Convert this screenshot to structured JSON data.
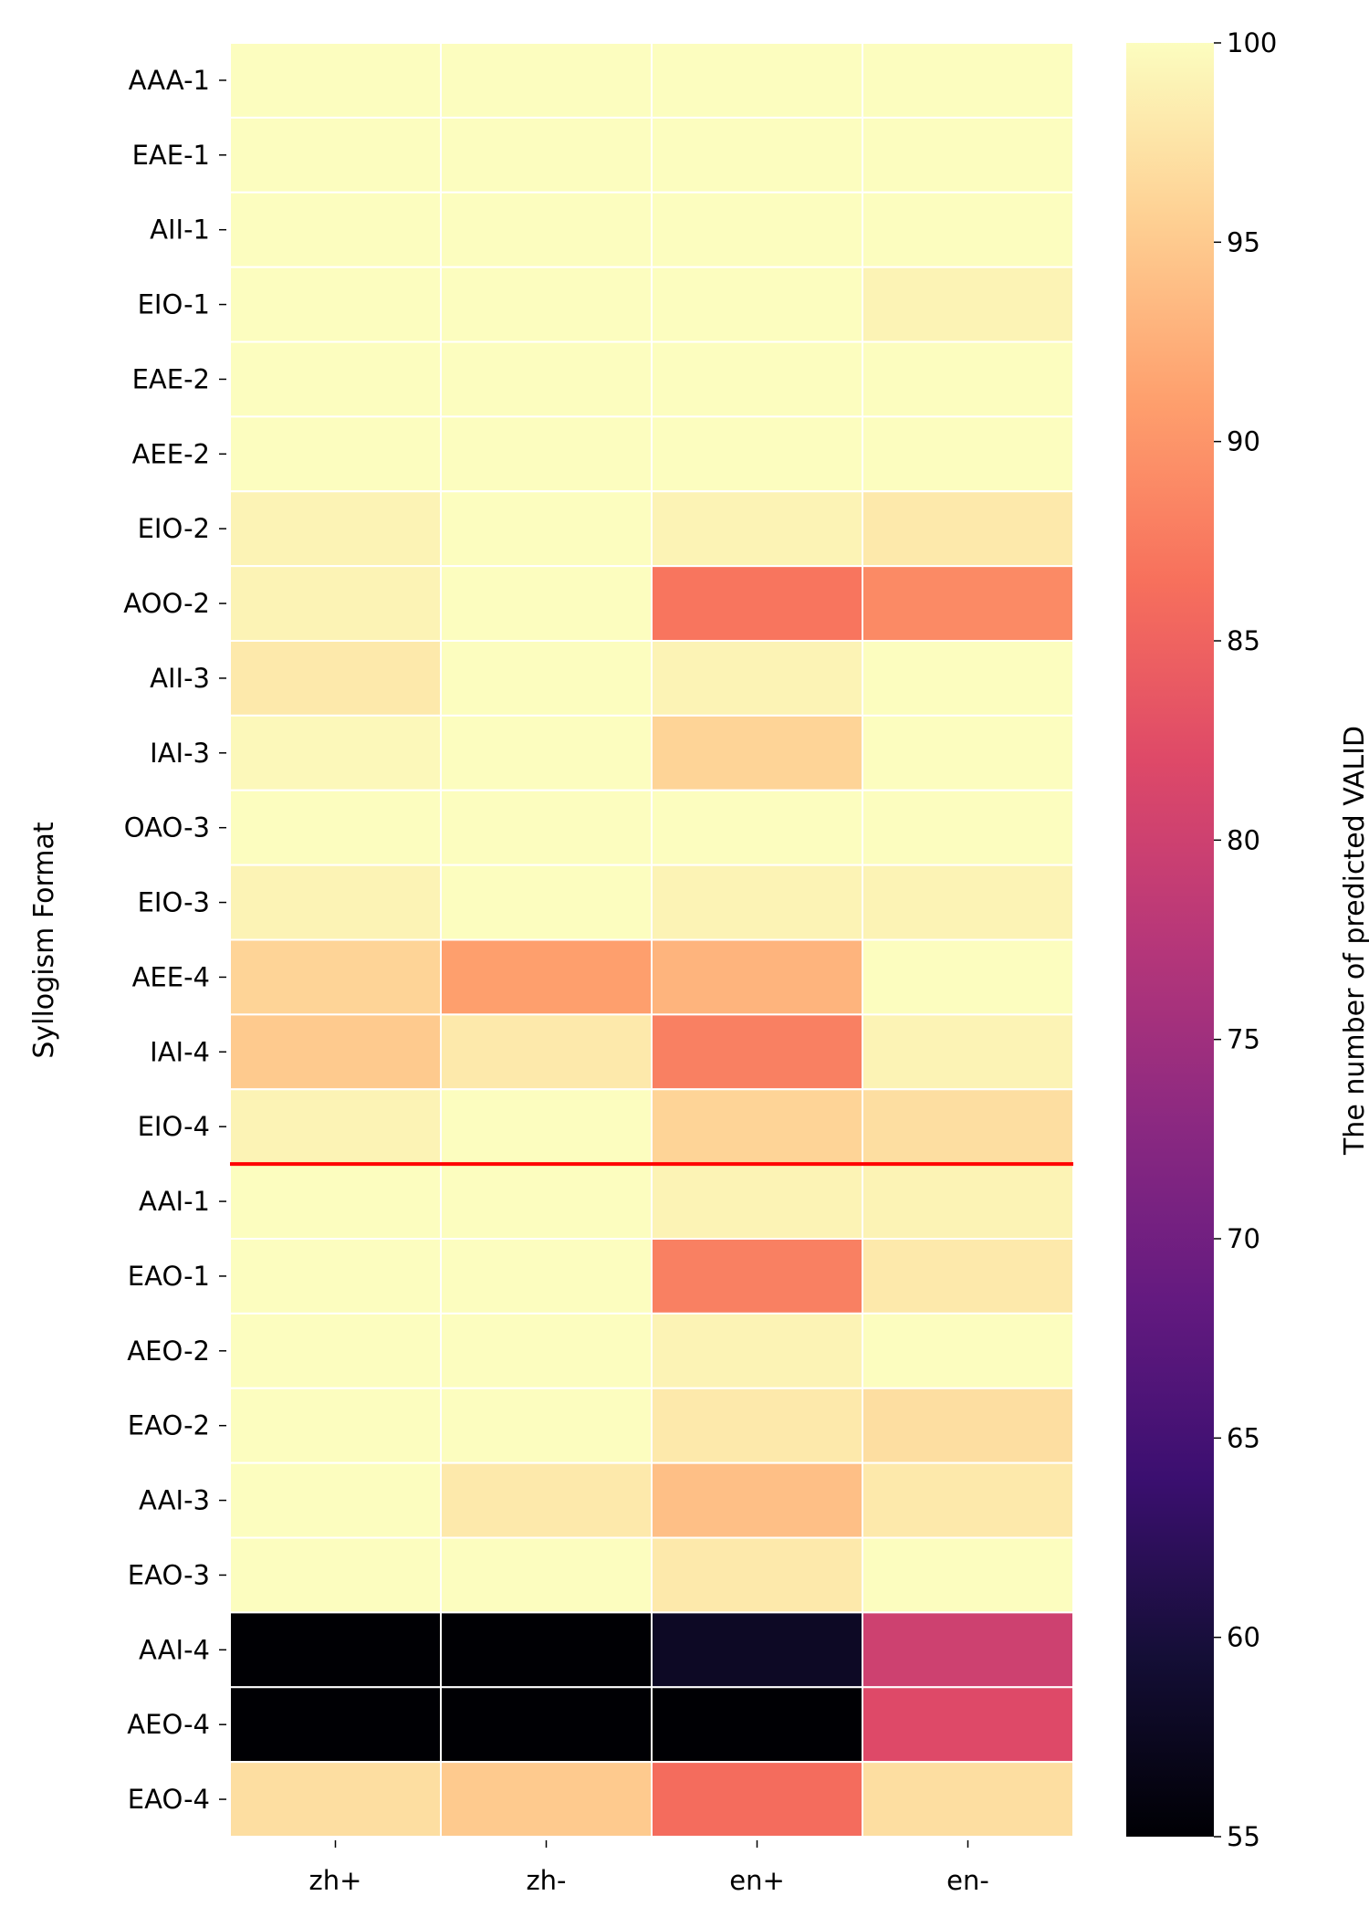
{
  "chart_data": {
    "type": "heatmap",
    "title": "",
    "xlabel": "",
    "ylabel": "Syllogism Format",
    "colorbar_label": "The number of predicted VALID",
    "colormap": "magma",
    "vmin": 55,
    "vmax": 100,
    "colorbar_ticks": [
      55,
      60,
      65,
      70,
      75,
      80,
      85,
      90,
      95,
      100
    ],
    "columns": [
      "zh+",
      "zh-",
      "en+",
      "en-"
    ],
    "rows": [
      "AAA-1",
      "EAE-1",
      "AII-1",
      "EIO-1",
      "EAE-2",
      "AEE-2",
      "EIO-2",
      "AOO-2",
      "AII-3",
      "IAI-3",
      "OAO-3",
      "EIO-3",
      "AEE-4",
      "IAI-4",
      "EIO-4",
      "AAI-1",
      "EAO-1",
      "AEO-2",
      "EAO-2",
      "AAI-3",
      "EAO-3",
      "AAI-4",
      "AEO-4",
      "EAO-4"
    ],
    "values": [
      [
        100,
        100,
        100,
        100
      ],
      [
        100,
        100,
        100,
        100
      ],
      [
        100,
        100,
        100,
        100
      ],
      [
        100,
        100,
        100,
        99
      ],
      [
        100,
        100,
        100,
        100
      ],
      [
        100,
        100,
        100,
        100
      ],
      [
        99,
        100,
        99,
        98
      ],
      [
        99,
        100,
        87,
        89
      ],
      [
        98,
        100,
        99,
        100
      ],
      [
        99.5,
        100,
        96,
        100
      ],
      [
        100,
        100,
        100,
        100
      ],
      [
        99,
        100,
        99,
        99
      ],
      [
        96,
        91,
        93,
        100
      ],
      [
        95,
        98,
        88,
        99
      ],
      [
        99,
        100,
        96,
        97
      ],
      [
        100,
        100,
        99,
        99
      ],
      [
        100,
        100,
        88,
        98
      ],
      [
        100,
        100,
        99,
        100
      ],
      [
        100,
        100,
        98,
        97
      ],
      [
        100,
        98,
        94,
        98
      ],
      [
        100,
        100,
        98,
        100
      ],
      [
        55,
        55,
        58,
        80
      ],
      [
        55,
        55,
        55,
        82
      ],
      [
        97,
        95,
        86,
        97
      ]
    ],
    "separator_after_row": "EIO-4",
    "separator_color": "#ff0000"
  }
}
